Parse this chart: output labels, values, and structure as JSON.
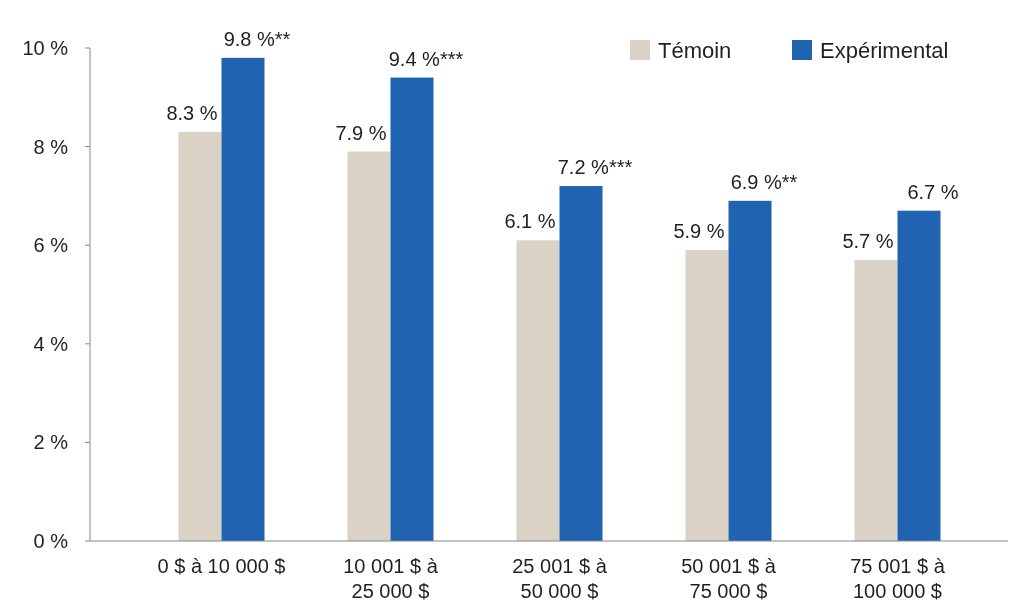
{
  "chart_data": {
    "type": "bar",
    "categories": [
      "0 $ à 10 000 $",
      "10 001 $ à\n25 000 $",
      "25 001 $ à\n50 000 $",
      "50 001 $ à\n75 000 $",
      "75 001 $ à\n100 000 $"
    ],
    "series": [
      {
        "name": "Témoin",
        "color": "#d9d2c5",
        "values": [
          8.3,
          7.9,
          6.1,
          5.9,
          5.7
        ],
        "value_labels": [
          "8.3 %",
          "7.9 %",
          "6.1 %",
          "5.9 %",
          "5.7 %"
        ]
      },
      {
        "name": "Expérimental",
        "color": "#2063b0",
        "values": [
          9.8,
          9.4,
          7.2,
          6.9,
          6.7
        ],
        "value_labels": [
          "9.8 %**",
          "9.4 %***",
          "7.2 %***",
          "6.9 %**",
          "6.7 %"
        ]
      }
    ],
    "ylim": [
      0,
      10
    ],
    "yticks": [
      {
        "value": 0,
        "label": "0 %"
      },
      {
        "value": 2,
        "label": "2 %"
      },
      {
        "value": 4,
        "label": "4 %"
      },
      {
        "value": 6,
        "label": "6 %"
      },
      {
        "value": 8,
        "label": "8 %"
      },
      {
        "value": 10,
        "label": "10 %"
      }
    ],
    "grid": false,
    "legend": "top right"
  }
}
